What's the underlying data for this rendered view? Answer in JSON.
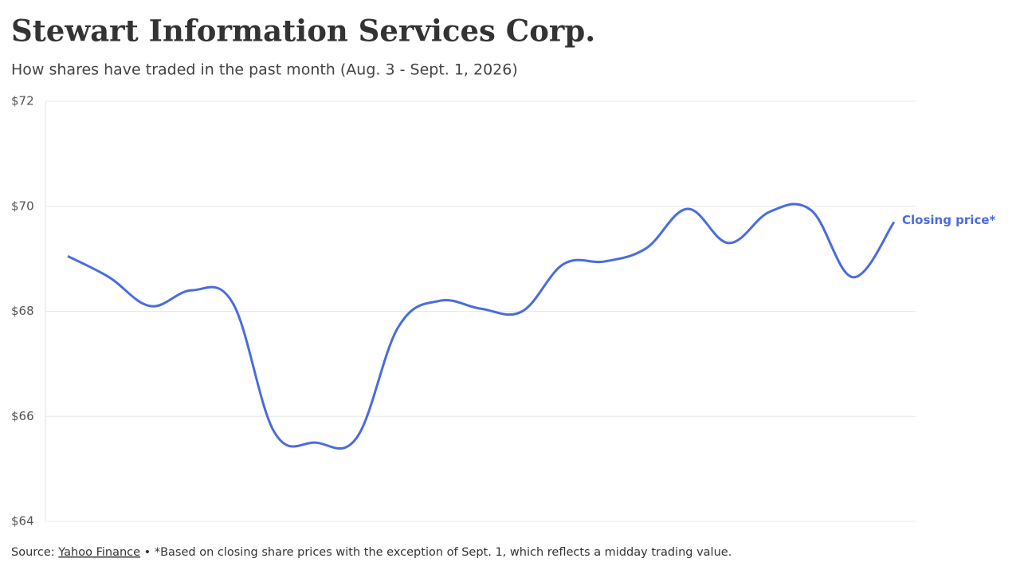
{
  "chart_data": {
    "type": "line",
    "title": "Stewart Information Services Corp.",
    "subtitle": "How shares have traded in the past month (Aug. 3 - Sept. 1, 2026)",
    "series": [
      {
        "name": "Closing price*",
        "color": "#4a6be0",
        "values": [
          69.05,
          68.65,
          68.1,
          68.4,
          68.15,
          65.7,
          65.5,
          65.6,
          67.7,
          68.2,
          68.05,
          68.0,
          68.9,
          68.95,
          69.2,
          69.95,
          69.3,
          69.9,
          69.92,
          68.65,
          69.7
        ]
      }
    ],
    "ylim": [
      64,
      72
    ],
    "yticks": [
      {
        "value": 64,
        "label": "$64"
      },
      {
        "value": 66,
        "label": "$66"
      },
      {
        "value": 68,
        "label": "$68"
      },
      {
        "value": 70,
        "label": "$70"
      },
      {
        "value": 72,
        "label": "$72"
      }
    ],
    "grid": true,
    "source": {
      "prefix": "Source:",
      "link": "Yahoo Finance",
      "note": "• *Based on closing share prices with the exception of Sept. 1, which reflects a midday trading value."
    }
  }
}
